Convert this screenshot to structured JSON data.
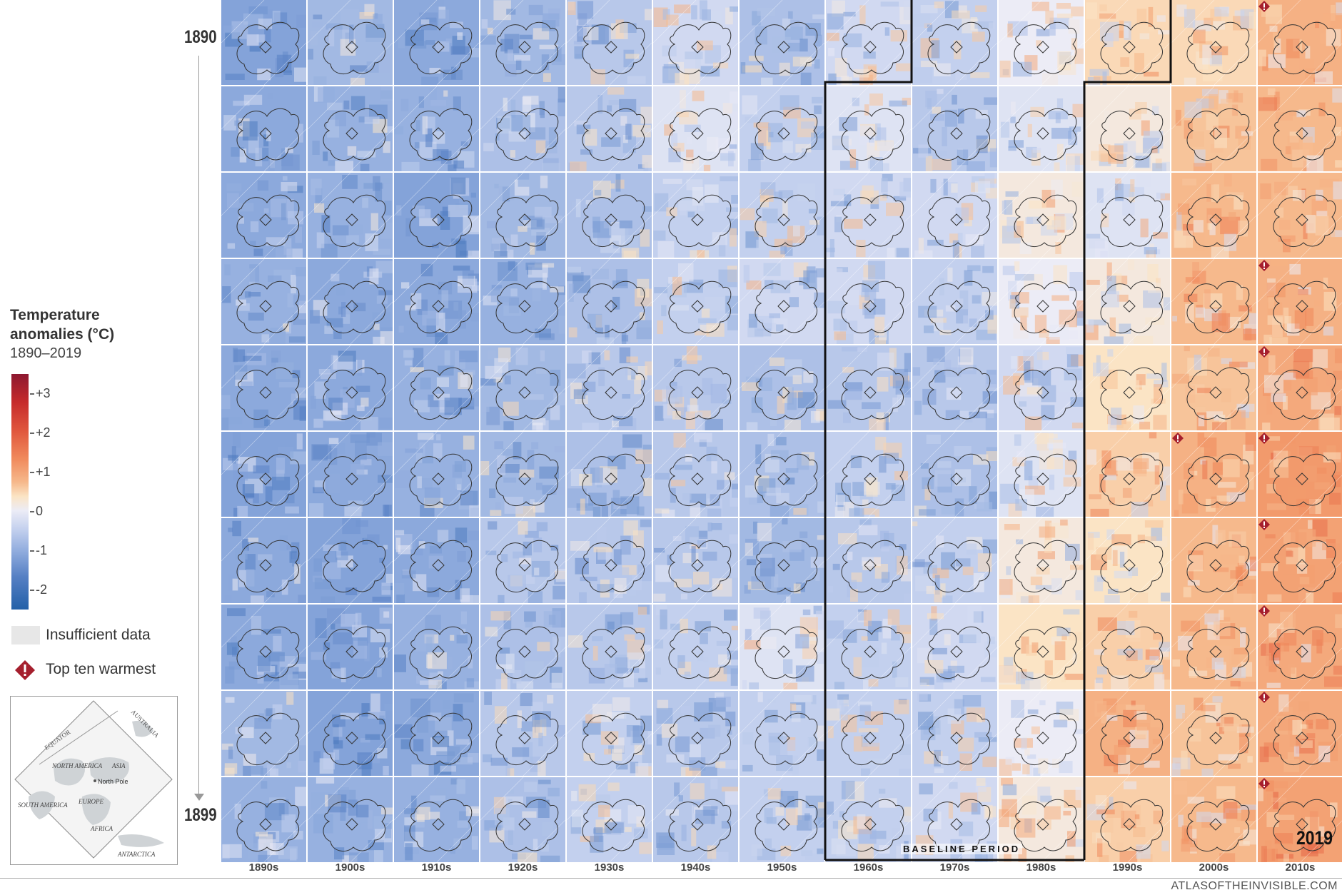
{
  "legend": {
    "title_line1": "Temperature",
    "title_line2": "anomalies (°C)",
    "subtitle": "1890–2019",
    "colorbar_ticks": [
      {
        "label": "+3",
        "value": 3
      },
      {
        "label": "+2",
        "value": 2
      },
      {
        "label": "+1",
        "value": 1
      },
      {
        "label": "0",
        "value": 0
      },
      {
        "label": "-1",
        "value": -1
      },
      {
        "label": "-2",
        "value": -2
      }
    ],
    "insufficient_label": "Insufficient data",
    "warmest_label": "Top ten warmest",
    "locator_labels": [
      "EQUATOR",
      "AUSTRALIA",
      "NORTH AMERICA",
      "ASIA",
      "North Pole",
      "EUROPE",
      "SOUTH AMERICA",
      "AFRICA",
      "ANTARCTICA"
    ]
  },
  "year_axis": {
    "start": "1890",
    "end": "1899"
  },
  "highlight_year": "2019",
  "baseline_label": "BASELINE PERIOD",
  "credit": "ATLASOFTHEINVISIBLE.COM",
  "colors": {
    "warm_dark": "#8d1830",
    "warm": "#e0563d",
    "neutral": "#fbe4c5",
    "cool": "#5680c4",
    "cool_dark": "#2360a8",
    "insufficient": "#e7e7e7",
    "marker": "#a51f2d"
  },
  "chart_data": {
    "type": "heatmap",
    "subtitle": "1890–2019",
    "x_categories": [
      "1890s",
      "1900s",
      "1910s",
      "1920s",
      "1930s",
      "1940s",
      "1950s",
      "1960s",
      "1970s",
      "1980s",
      "1990s",
      "2000s",
      "2010s"
    ],
    "y_categories": [
      0,
      1,
      2,
      3,
      4,
      5,
      6,
      7,
      8,
      9
    ],
    "y_axis_start": "1890",
    "y_axis_end": "1899",
    "value_range": [
      -2.5,
      3.5
    ],
    "legend_label": "Temperature anomalies (°C)",
    "series": [
      {
        "name": "1890s",
        "values": [
          -0.9,
          -0.8,
          -0.8,
          -0.7,
          -0.8,
          -0.9,
          -0.8,
          -0.8,
          -0.6,
          -0.7
        ]
      },
      {
        "name": "1900s",
        "values": [
          -0.6,
          -0.7,
          -0.7,
          -0.8,
          -0.8,
          -0.8,
          -0.9,
          -0.9,
          -0.9,
          -0.7
        ]
      },
      {
        "name": "1910s",
        "values": [
          -0.8,
          -0.7,
          -0.9,
          -0.8,
          -0.7,
          -0.7,
          -0.8,
          -0.7,
          -0.8,
          -0.7
        ]
      },
      {
        "name": "1920s",
        "values": [
          -0.6,
          -0.5,
          -0.6,
          -0.7,
          -0.6,
          -0.6,
          -0.4,
          -0.5,
          -0.4,
          -0.5
        ]
      },
      {
        "name": "1930s",
        "values": [
          -0.4,
          -0.4,
          -0.5,
          -0.5,
          -0.4,
          -0.5,
          -0.4,
          -0.4,
          -0.3,
          -0.3
        ]
      },
      {
        "name": "1940s",
        "values": [
          -0.2,
          -0.1,
          -0.3,
          -0.3,
          -0.4,
          -0.4,
          -0.4,
          -0.3,
          -0.4,
          -0.4
        ]
      },
      {
        "name": "1950s",
        "values": [
          -0.5,
          -0.3,
          -0.3,
          -0.2,
          -0.5,
          -0.5,
          -0.6,
          -0.1,
          -0.3,
          -0.3
        ]
      },
      {
        "name": "1960s",
        "values": [
          -0.2,
          -0.1,
          -0.2,
          -0.2,
          -0.4,
          -0.3,
          -0.4,
          -0.3,
          -0.3,
          -0.3
        ]
      },
      {
        "name": "1970s",
        "values": [
          -0.3,
          -0.4,
          -0.2,
          -0.3,
          -0.4,
          -0.5,
          -0.3,
          -0.2,
          -0.3,
          -0.2
        ]
      },
      {
        "name": "1980s",
        "values": [
          0.0,
          -0.1,
          0.1,
          0.0,
          -0.2,
          -0.1,
          0.1,
          0.2,
          0.0,
          0.1
        ]
      },
      {
        "name": "1990s",
        "values": [
          0.3,
          0.1,
          -0.1,
          0.1,
          0.2,
          0.4,
          0.2,
          0.4,
          0.7,
          0.4
        ]
      },
      {
        "name": "2000s",
        "values": [
          0.3,
          0.5,
          0.6,
          0.6,
          0.5,
          0.7,
          0.6,
          0.6,
          0.5,
          0.6
        ]
      },
      {
        "name": "2010s",
        "values": [
          0.7,
          0.6,
          0.6,
          0.7,
          0.8,
          1.0,
          0.9,
          0.8,
          0.8,
          0.9
        ]
      }
    ],
    "top_ten_warmest": [
      {
        "decade": "2010s",
        "row": 0
      },
      {
        "decade": "2010s",
        "row": 3
      },
      {
        "decade": "2010s",
        "row": 4
      },
      {
        "decade": "2000s",
        "row": 5
      },
      {
        "decade": "2010s",
        "row": 5
      },
      {
        "decade": "2010s",
        "row": 6
      },
      {
        "decade": "2010s",
        "row": 7
      },
      {
        "decade": "2010s",
        "row": 8
      },
      {
        "decade": "2010s",
        "row": 9
      }
    ],
    "baseline_period": [
      "1961",
      "1990"
    ],
    "grid": false
  }
}
